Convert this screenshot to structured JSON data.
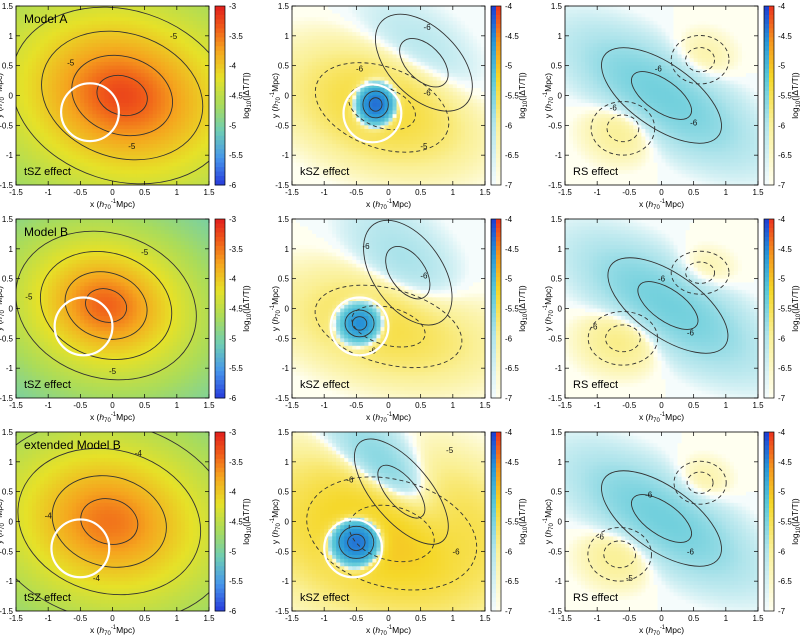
{
  "chart_data": {
    "type": "heatmap",
    "xlabel_parts": [
      "x (",
      "h",
      "70",
      "-1",
      "Mpc)"
    ],
    "ylabel_parts": [
      "y (",
      "h",
      "70",
      "-1",
      "Mpc)"
    ],
    "x_ticks": [
      "-1.5",
      "-1",
      "-0.5",
      "0",
      "0.5",
      "1",
      "1.5"
    ],
    "y_ticks": [
      "1.5",
      "1",
      "0.5",
      "0",
      "-0.5",
      "-1",
      "-1.5"
    ],
    "xlim": [
      -1.5,
      1.5
    ],
    "ylim": [
      -1.5,
      1.5
    ],
    "colorbar_label": "log10(|ΔT/T|)",
    "colorbar_label_parts": [
      "log",
      "10",
      "(|ΔT/T|)"
    ],
    "colorbars": {
      "tsz": {
        "ticks": [
          "-3",
          "-3.5",
          "-4",
          "-4.5",
          "-5",
          "-5.5",
          "-6"
        ],
        "range": [
          -6,
          -3
        ],
        "palette": "rainbow"
      },
      "ksz": {
        "ticks": [
          "-4",
          "-4.5",
          "-5",
          "-5.5",
          "-6",
          "-6.5",
          "-7"
        ],
        "range": [
          -7,
          -4
        ],
        "palette": "split"
      },
      "rs": {
        "ticks": [
          "-4",
          "-4.5",
          "-5",
          "-5.5",
          "-6",
          "-6.5",
          "-7"
        ],
        "range": [
          -7,
          -4
        ],
        "palette": "split"
      }
    },
    "panels": [
      {
        "row": 0,
        "col": 0,
        "effect": "tSZ effect",
        "model": "Model A",
        "kind": "tsz",
        "circle": {
          "x": -0.35,
          "y": -0.28,
          "r": 0.45
        },
        "blobs": [
          {
            "x": 0.15,
            "y": 0.0,
            "rx": 3.2,
            "ry": 2.6,
            "rot": -18,
            "peak": -3.25
          }
        ],
        "contour_labels": [
          {
            "x": -0.65,
            "y": 0.55,
            "text": "-5"
          },
          {
            "x": 0.95,
            "y": 1.0,
            "text": "-5"
          },
          {
            "x": 0.3,
            "y": -0.85,
            "text": "-5"
          }
        ]
      },
      {
        "row": 0,
        "col": 1,
        "effect": "kSZ effect",
        "model": "",
        "kind": "ksz",
        "circle": {
          "x": -0.25,
          "y": -0.3,
          "r": 0.45
        },
        "blobs": [
          {
            "x": 0.55,
            "y": 0.55,
            "rx": 0.6,
            "ry": 1.1,
            "rot": 45,
            "peak": -5.9,
            "sign": -1
          },
          {
            "x": -0.2,
            "y": -0.15,
            "rx": 0.22,
            "ry": 0.25,
            "rot": 0,
            "peak": -4.3,
            "sign": -1
          },
          {
            "x": -0.1,
            "y": -0.2,
            "rx": 1.2,
            "ry": 0.75,
            "rot": -20,
            "peak": -5.3,
            "sign": 1
          }
        ],
        "contour_labels": [
          {
            "x": 0.6,
            "y": 1.15,
            "text": "-6"
          },
          {
            "x": 0.6,
            "y": 0.05,
            "text": "-6"
          },
          {
            "x": -0.45,
            "y": 0.45,
            "text": "-6"
          },
          {
            "x": 0.55,
            "y": -0.85,
            "text": "-5"
          }
        ]
      },
      {
        "row": 0,
        "col": 2,
        "effect": "RS effect",
        "model": "",
        "kind": "rs",
        "circle": null,
        "blobs": [
          {
            "x": 0.0,
            "y": 0.0,
            "rx": 0.55,
            "ry": 1.3,
            "rot": 55,
            "peak": -5.4,
            "sign": -1
          },
          {
            "x": -0.6,
            "y": -0.55,
            "rx": 0.55,
            "ry": 0.5,
            "rot": 0,
            "peak": -5.9,
            "sign": 1
          },
          {
            "x": 0.6,
            "y": 0.6,
            "rx": 0.5,
            "ry": 0.45,
            "rot": 0,
            "peak": -6.1,
            "sign": 1
          }
        ],
        "contour_labels": [
          {
            "x": -0.05,
            "y": 0.45,
            "text": "-6"
          },
          {
            "x": -0.75,
            "y": -0.2,
            "text": "-6"
          },
          {
            "x": 0.5,
            "y": -0.45,
            "text": "-6"
          }
        ]
      },
      {
        "row": 1,
        "col": 0,
        "effect": "tSZ effect",
        "model": "Model B",
        "kind": "tsz",
        "circle": {
          "x": -0.45,
          "y": -0.3,
          "r": 0.45
        },
        "blobs": [
          {
            "x": -0.1,
            "y": 0.05,
            "rx": 2.6,
            "ry": 2.2,
            "rot": -18,
            "peak": -3.4
          }
        ],
        "contour_labels": [
          {
            "x": -1.3,
            "y": 0.2,
            "text": "-5"
          },
          {
            "x": 0.5,
            "y": 0.95,
            "text": "-5"
          },
          {
            "x": 0.0,
            "y": -1.05,
            "text": "-5"
          }
        ]
      },
      {
        "row": 1,
        "col": 1,
        "effect": "kSZ effect",
        "model": "",
        "kind": "ksz",
        "circle": {
          "x": -0.45,
          "y": -0.3,
          "r": 0.45
        },
        "blobs": [
          {
            "x": 0.3,
            "y": 0.6,
            "rx": 0.6,
            "ry": 1.1,
            "rot": 35,
            "peak": -5.8,
            "sign": -1
          },
          {
            "x": -0.45,
            "y": -0.25,
            "rx": 0.25,
            "ry": 0.25,
            "rot": 0,
            "peak": -4.5,
            "sign": -1
          },
          {
            "x": 0.0,
            "y": -0.3,
            "rx": 1.3,
            "ry": 0.7,
            "rot": -15,
            "peak": -5.4,
            "sign": 1
          }
        ],
        "contour_labels": [
          {
            "x": 0.55,
            "y": 0.55,
            "text": "-6"
          },
          {
            "x": -0.25,
            "y": -0.7,
            "text": "-6"
          },
          {
            "x": -0.35,
            "y": 1.05,
            "text": "-6"
          }
        ]
      },
      {
        "row": 1,
        "col": 2,
        "effect": "RS effect",
        "model": "",
        "kind": "rs",
        "circle": null,
        "blobs": [
          {
            "x": 0.1,
            "y": 0.05,
            "rx": 0.55,
            "ry": 1.3,
            "rot": 55,
            "peak": -5.4,
            "sign": -1
          },
          {
            "x": -0.6,
            "y": -0.5,
            "rx": 0.6,
            "ry": 0.5,
            "rot": 0,
            "peak": -5.8,
            "sign": 1
          },
          {
            "x": 0.6,
            "y": 0.6,
            "rx": 0.5,
            "ry": 0.4,
            "rot": 0,
            "peak": -6.1,
            "sign": 1
          }
        ],
        "contour_labels": [
          {
            "x": 0.0,
            "y": 0.5,
            "text": "-6"
          },
          {
            "x": -1.05,
            "y": -0.3,
            "text": "-6"
          },
          {
            "x": 0.45,
            "y": -0.4,
            "text": "-6"
          }
        ]
      },
      {
        "row": 2,
        "col": 0,
        "effect": "tSZ effect",
        "model": "extended Model B",
        "kind": "tsz",
        "circle": {
          "x": -0.5,
          "y": -0.45,
          "r": 0.45
        },
        "blobs": [
          {
            "x": -0.05,
            "y": 0.0,
            "rx": 3.6,
            "ry": 3.0,
            "rot": -15,
            "peak": -3.5
          }
        ],
        "contour_labels": [
          {
            "x": -1.0,
            "y": 0.1,
            "text": "-4"
          },
          {
            "x": 0.4,
            "y": 1.15,
            "text": "-4"
          },
          {
            "x": -0.25,
            "y": -0.95,
            "text": "-4"
          }
        ]
      },
      {
        "row": 2,
        "col": 1,
        "effect": "kSZ effect",
        "model": "",
        "kind": "ksz",
        "circle": {
          "x": -0.55,
          "y": -0.45,
          "r": 0.45
        },
        "blobs": [
          {
            "x": 0.2,
            "y": 0.5,
            "rx": 0.5,
            "ry": 1.2,
            "rot": 40,
            "peak": -5.2,
            "sign": -1
          },
          {
            "x": -0.5,
            "y": -0.35,
            "rx": 0.3,
            "ry": 0.3,
            "rot": 0,
            "peak": -4.3,
            "sign": -1
          },
          {
            "x": 0.05,
            "y": -0.2,
            "rx": 1.5,
            "ry": 1.0,
            "rot": -15,
            "peak": -5.0,
            "sign": 1
          }
        ],
        "contour_labels": [
          {
            "x": -0.6,
            "y": 0.7,
            "text": "-6"
          },
          {
            "x": 0.95,
            "y": 1.2,
            "text": "-5"
          },
          {
            "x": 1.05,
            "y": -0.5,
            "text": "-6"
          }
        ]
      },
      {
        "row": 2,
        "col": 2,
        "effect": "RS effect",
        "model": "",
        "kind": "rs",
        "circle": null,
        "blobs": [
          {
            "x": 0.0,
            "y": 0.05,
            "rx": 0.55,
            "ry": 1.3,
            "rot": 55,
            "peak": -5.4,
            "sign": -1
          },
          {
            "x": -0.65,
            "y": -0.55,
            "rx": 0.55,
            "ry": 0.5,
            "rot": 0,
            "peak": -5.9,
            "sign": 1
          },
          {
            "x": 0.6,
            "y": 0.65,
            "rx": 0.45,
            "ry": 0.4,
            "rot": 0,
            "peak": -6.1,
            "sign": 1
          }
        ],
        "contour_labels": [
          {
            "x": -0.2,
            "y": 0.45,
            "text": "-6"
          },
          {
            "x": -0.95,
            "y": -0.25,
            "text": "-6"
          },
          {
            "x": 0.45,
            "y": -0.5,
            "text": "-6"
          },
          {
            "x": -0.5,
            "y": -0.95,
            "text": "-5"
          }
        ]
      }
    ]
  }
}
